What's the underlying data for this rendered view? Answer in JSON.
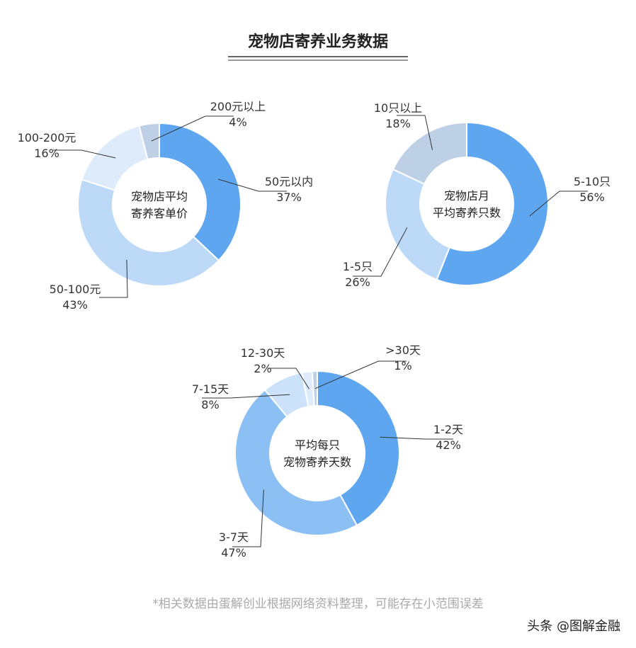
{
  "title": "宠物店寄养业务数据",
  "footnote": "*相关数据由蛋解创业根据网络资料整理，可能存在小范围误差",
  "watermark": "头条 @图解金融",
  "chart_data": [
    {
      "type": "pie",
      "center_label": [
        "宠物店平均",
        "寄养客单价"
      ],
      "categories": [
        "50元以内",
        "50-100元",
        "100-200元",
        "200元以上"
      ],
      "values": [
        37,
        43,
        16,
        4
      ],
      "value_labels": [
        "37%",
        "43%",
        "16%",
        "4%"
      ],
      "colors": [
        "#5ea6f0",
        "#bcdaf8",
        "#ddebfb",
        "#bdd0e6"
      ]
    },
    {
      "type": "pie",
      "center_label": [
        "宠物店月",
        "平均寄养只数"
      ],
      "categories": [
        "5-10只",
        "1-5只",
        "10只以上"
      ],
      "values": [
        56,
        26,
        18
      ],
      "value_labels": [
        "56%",
        "26%",
        "18%"
      ],
      "colors": [
        "#5ea6f0",
        "#bcdaf8",
        "#bdd0e6"
      ]
    },
    {
      "type": "pie",
      "center_label": [
        "平均每只",
        "宠物寄养天数"
      ],
      "categories": [
        "1-2天",
        "3-7天",
        "7-15天",
        "12-30天",
        ">30天"
      ],
      "values": [
        42,
        47,
        8,
        2,
        1
      ],
      "value_labels": [
        "42%",
        "47%",
        "8%",
        "2%",
        "1%"
      ],
      "colors": [
        "#5ea6f0",
        "#8cc0f4",
        "#cbe2fa",
        "#ddebfb",
        "#bdd0e6"
      ]
    }
  ]
}
